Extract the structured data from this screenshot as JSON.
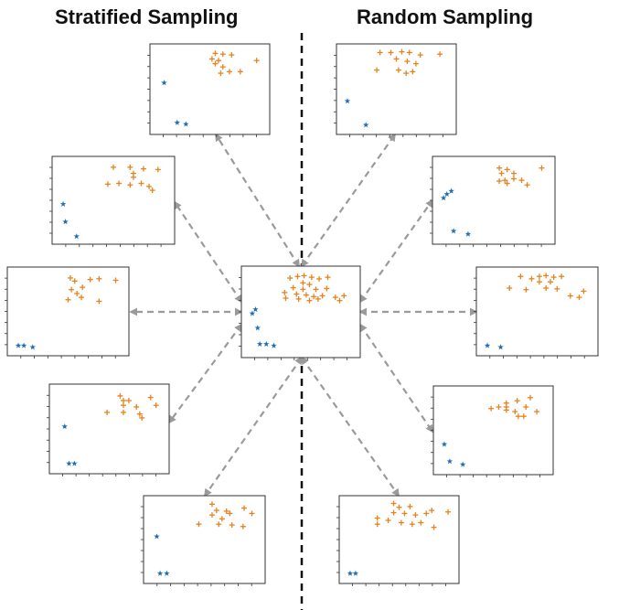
{
  "titles": {
    "left": "Stratified Sampling",
    "right": "Random Sampling"
  },
  "colors": {
    "majority_class": "#e8821e",
    "minority_class": "#1f6fb2",
    "arrow": "#9a9a9a",
    "divider": "#111111",
    "frame": "#333333"
  },
  "marker_shapes": {
    "majority_class": "plus",
    "minority_class": "star"
  },
  "center_dataset": {
    "majority": [
      [
        0.4,
        0.92
      ],
      [
        0.47,
        0.94
      ],
      [
        0.53,
        0.95
      ],
      [
        0.6,
        0.93
      ],
      [
        0.67,
        0.91
      ],
      [
        0.75,
        0.93
      ],
      [
        0.52,
        0.86
      ],
      [
        0.58,
        0.84
      ],
      [
        0.43,
        0.8
      ],
      [
        0.52,
        0.78
      ],
      [
        0.64,
        0.78
      ],
      [
        0.74,
        0.79
      ],
      [
        0.35,
        0.74
      ],
      [
        0.46,
        0.72
      ],
      [
        0.55,
        0.71
      ],
      [
        0.62,
        0.69
      ],
      [
        0.7,
        0.7
      ],
      [
        0.82,
        0.68
      ],
      [
        0.9,
        0.7
      ],
      [
        0.36,
        0.67
      ],
      [
        0.48,
        0.66
      ],
      [
        0.58,
        0.64
      ],
      [
        0.66,
        0.66
      ],
      [
        0.86,
        0.64
      ]
    ],
    "minority": [
      [
        0.08,
        0.53
      ],
      [
        0.05,
        0.48
      ],
      [
        0.1,
        0.3
      ],
      [
        0.12,
        0.1
      ],
      [
        0.18,
        0.1
      ],
      [
        0.25,
        0.08
      ]
    ]
  },
  "stratified_samples": [
    {
      "majority": [
        [
          0.55,
          0.95
        ],
        [
          0.62,
          0.94
        ],
        [
          0.7,
          0.93
        ],
        [
          0.52,
          0.88
        ],
        [
          0.58,
          0.86
        ],
        [
          0.55,
          0.82
        ],
        [
          0.62,
          0.78
        ],
        [
          0.68,
          0.72
        ],
        [
          0.78,
          0.72
        ],
        [
          0.6,
          0.7
        ],
        [
          0.93,
          0.86
        ]
      ],
      "minority": [
        [
          0.08,
          0.58
        ],
        [
          0.2,
          0.08
        ],
        [
          0.28,
          0.06
        ]
      ]
    },
    {
      "majority": [
        [
          0.5,
          0.93
        ],
        [
          0.65,
          0.93
        ],
        [
          0.77,
          0.91
        ],
        [
          0.9,
          0.9
        ],
        [
          0.68,
          0.85
        ],
        [
          0.68,
          0.8
        ],
        [
          0.45,
          0.71
        ],
        [
          0.55,
          0.72
        ],
        [
          0.65,
          0.7
        ],
        [
          0.75,
          0.72
        ],
        [
          0.82,
          0.68
        ],
        [
          0.85,
          0.63
        ]
      ],
      "minority": [
        [
          0.05,
          0.45
        ],
        [
          0.07,
          0.22
        ],
        [
          0.17,
          0.03
        ]
      ]
    },
    {
      "majority": [
        [
          0.52,
          0.93
        ],
        [
          0.56,
          0.89
        ],
        [
          0.7,
          0.91
        ],
        [
          0.78,
          0.92
        ],
        [
          0.93,
          0.9
        ],
        [
          0.53,
          0.78
        ],
        [
          0.63,
          0.81
        ],
        [
          0.58,
          0.73
        ],
        [
          0.5,
          0.65
        ],
        [
          0.62,
          0.68
        ],
        [
          0.78,
          0.63
        ]
      ],
      "minority": [
        [
          0.05,
          0.06
        ],
        [
          0.1,
          0.06
        ],
        [
          0.18,
          0.04
        ]
      ]
    },
    {
      "majority": [
        [
          0.6,
          0.92
        ],
        [
          0.63,
          0.86
        ],
        [
          0.68,
          0.86
        ],
        [
          0.88,
          0.9
        ],
        [
          0.93,
          0.8
        ],
        [
          0.63,
          0.8
        ],
        [
          0.75,
          0.78
        ],
        [
          0.48,
          0.71
        ],
        [
          0.63,
          0.71
        ],
        [
          0.78,
          0.69
        ],
        [
          0.8,
          0.64
        ]
      ],
      "minority": [
        [
          0.09,
          0.53
        ],
        [
          0.13,
          0.06
        ],
        [
          0.18,
          0.06
        ]
      ]
    },
    {
      "majority": [
        [
          0.57,
          0.96
        ],
        [
          0.61,
          0.88
        ],
        [
          0.7,
          0.87
        ],
        [
          0.73,
          0.84
        ],
        [
          0.86,
          0.91
        ],
        [
          0.93,
          0.84
        ],
        [
          0.57,
          0.82
        ],
        [
          0.66,
          0.77
        ],
        [
          0.45,
          0.7
        ],
        [
          0.63,
          0.7
        ],
        [
          0.75,
          0.69
        ],
        [
          0.85,
          0.67
        ]
      ],
      "minority": [
        [
          0.07,
          0.54
        ],
        [
          0.1,
          0.06
        ],
        [
          0.16,
          0.06
        ]
      ]
    }
  ],
  "random_samples": [
    {
      "majority": [
        [
          0.35,
          0.96
        ],
        [
          0.45,
          0.96
        ],
        [
          0.55,
          0.97
        ],
        [
          0.62,
          0.96
        ],
        [
          0.72,
          0.93
        ],
        [
          0.9,
          0.94
        ],
        [
          0.5,
          0.88
        ],
        [
          0.6,
          0.85
        ],
        [
          0.68,
          0.82
        ],
        [
          0.32,
          0.74
        ],
        [
          0.52,
          0.74
        ],
        [
          0.59,
          0.7
        ],
        [
          0.65,
          0.72
        ]
      ],
      "minority": [
        [
          0.05,
          0.35
        ],
        [
          0.22,
          0.05
        ]
      ]
    },
    {
      "majority": [
        [
          0.55,
          0.92
        ],
        [
          0.62,
          0.9
        ],
        [
          0.68,
          0.85
        ],
        [
          0.93,
          0.92
        ],
        [
          0.57,
          0.85
        ],
        [
          0.68,
          0.78
        ],
        [
          0.55,
          0.75
        ],
        [
          0.6,
          0.76
        ],
        [
          0.75,
          0.76
        ],
        [
          0.8,
          0.7
        ],
        [
          0.62,
          0.72
        ]
      ],
      "minority": [
        [
          0.05,
          0.53
        ],
        [
          0.08,
          0.58
        ],
        [
          0.12,
          0.62
        ],
        [
          0.14,
          0.1
        ],
        [
          0.27,
          0.06
        ]
      ]
    },
    {
      "majority": [
        [
          0.35,
          0.95
        ],
        [
          0.45,
          0.92
        ],
        [
          0.52,
          0.95
        ],
        [
          0.58,
          0.96
        ],
        [
          0.65,
          0.94
        ],
        [
          0.72,
          0.95
        ],
        [
          0.52,
          0.88
        ],
        [
          0.62,
          0.88
        ],
        [
          0.25,
          0.8
        ],
        [
          0.4,
          0.78
        ],
        [
          0.58,
          0.8
        ],
        [
          0.68,
          0.79
        ],
        [
          0.8,
          0.7
        ],
        [
          0.92,
          0.76
        ],
        [
          0.88,
          0.68
        ]
      ],
      "minority": [
        [
          0.05,
          0.06
        ],
        [
          0.17,
          0.04
        ]
      ]
    },
    {
      "majority": [
        [
          0.48,
          0.78
        ],
        [
          0.55,
          0.8
        ],
        [
          0.62,
          0.85
        ],
        [
          0.62,
          0.8
        ],
        [
          0.72,
          0.88
        ],
        [
          0.84,
          0.92
        ],
        [
          0.62,
          0.76
        ],
        [
          0.7,
          0.74
        ],
        [
          0.8,
          0.8
        ],
        [
          0.9,
          0.74
        ],
        [
          0.73,
          0.68
        ],
        [
          0.78,
          0.68
        ]
      ],
      "minority": [
        [
          0.05,
          0.32
        ],
        [
          0.1,
          0.1
        ],
        [
          0.22,
          0.06
        ]
      ]
    },
    {
      "majority": [
        [
          0.45,
          0.97
        ],
        [
          0.5,
          0.92
        ],
        [
          0.6,
          0.93
        ],
        [
          0.45,
          0.85
        ],
        [
          0.55,
          0.84
        ],
        [
          0.65,
          0.82
        ],
        [
          0.75,
          0.84
        ],
        [
          0.8,
          0.88
        ],
        [
          0.95,
          0.86
        ],
        [
          0.3,
          0.78
        ],
        [
          0.4,
          0.75
        ],
        [
          0.52,
          0.72
        ],
        [
          0.62,
          0.7
        ],
        [
          0.7,
          0.72
        ],
        [
          0.82,
          0.66
        ],
        [
          0.3,
          0.7
        ]
      ],
      "minority": [
        [
          0.05,
          0.06
        ],
        [
          0.1,
          0.06
        ]
      ]
    }
  ]
}
